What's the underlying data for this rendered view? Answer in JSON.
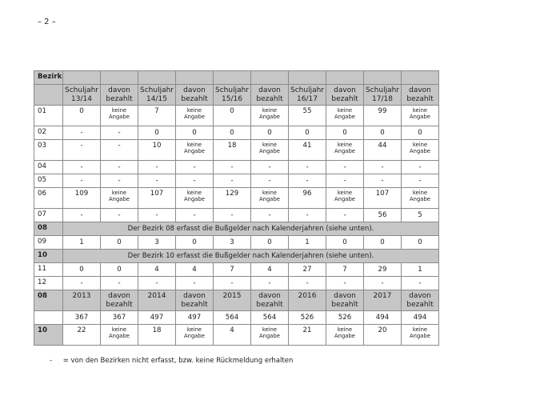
{
  "page_number": "– 2 –",
  "table": {
    "corner_label": "Bezirk",
    "columns": [
      "Schuljahr 13/14",
      "davon bezahlt",
      "Schuljahr 14/15",
      "davon bezahlt",
      "Schuljahr 15/16",
      "davon bezahlt",
      "Schuljahr 16/17",
      "davon bezahlt",
      "Schuljahr 17/18",
      "davon bezahlt"
    ],
    "rows": [
      {
        "bezirk": "01",
        "cells": [
          "0",
          "keine Angabe",
          "7",
          "keine Angabe",
          "0",
          "keine Angabe",
          "55",
          "keine Angabe",
          "99",
          "keine Angabe"
        ]
      },
      {
        "bezirk": "02",
        "cells": [
          "-",
          "-",
          "0",
          "0",
          "0",
          "0",
          "0",
          "0",
          "0",
          "0"
        ]
      },
      {
        "bezirk": "03",
        "cells": [
          "-",
          "-",
          "10",
          "keine Angabe",
          "18",
          "keine Angabe",
          "41",
          "keine Angabe",
          "44",
          "keine Angabe"
        ]
      },
      {
        "bezirk": "04",
        "cells": [
          "-",
          "-",
          "-",
          "-",
          "-",
          "-",
          "-",
          "-",
          "-",
          "-"
        ]
      },
      {
        "bezirk": "05",
        "cells": [
          "-",
          "-",
          "-",
          "-",
          "-",
          "-",
          "-",
          "-",
          "-",
          "-"
        ]
      },
      {
        "bezirk": "06",
        "cells": [
          "109",
          "keine Angabe",
          "107",
          "keine Angabe",
          "129",
          "keine Angabe",
          "96",
          "keine Angabe",
          "107",
          "keine Angabe"
        ]
      },
      {
        "bezirk": "07",
        "cells": [
          "-",
          "-",
          "-",
          "-",
          "-",
          "-",
          "-",
          "-",
          "56",
          "5"
        ]
      },
      {
        "bezirk": "08",
        "note": "Der Bezirk 08 erfasst die Bußgelder nach Kalenderjahren (siehe unten)."
      },
      {
        "bezirk": "09",
        "cells": [
          "1",
          "0",
          "3",
          "0",
          "3",
          "0",
          "1",
          "0",
          "0",
          "0"
        ]
      },
      {
        "bezirk": "10",
        "note": "Der Bezirk 10 erfasst die Bußgelder nach Kalenderjahren (siehe unten)."
      },
      {
        "bezirk": "11",
        "cells": [
          "0",
          "0",
          "4",
          "4",
          "7",
          "4",
          "27",
          "7",
          "29",
          "1"
        ]
      },
      {
        "bezirk": "12",
        "cells": [
          "-",
          "-",
          "-",
          "-",
          "-",
          "-",
          "-",
          "-",
          "-",
          "-"
        ]
      }
    ],
    "calendar_header": {
      "bezirk": "08",
      "cells": [
        "2013",
        "davon bezahlt",
        "2014",
        "davon bezahlt",
        "2015",
        "davon bezahlt",
        "2016",
        "davon bezahlt",
        "2017",
        "davon bezahlt"
      ]
    },
    "calendar_rows": [
      {
        "bezirk": "",
        "cells": [
          "367",
          "367",
          "497",
          "497",
          "564",
          "564",
          "526",
          "526",
          "494",
          "494"
        ]
      },
      {
        "bezirk": "10",
        "cells": [
          "22",
          "keine Angabe",
          "18",
          "keine Angabe",
          "4",
          "keine Angabe",
          "21",
          "keine Angabe",
          "20",
          "keine Angabe"
        ]
      }
    ]
  },
  "footnote": {
    "symbol": "-",
    "text": "= von den Bezirken nicht erfasst, bzw. keine Rückmeldung erhalten"
  }
}
